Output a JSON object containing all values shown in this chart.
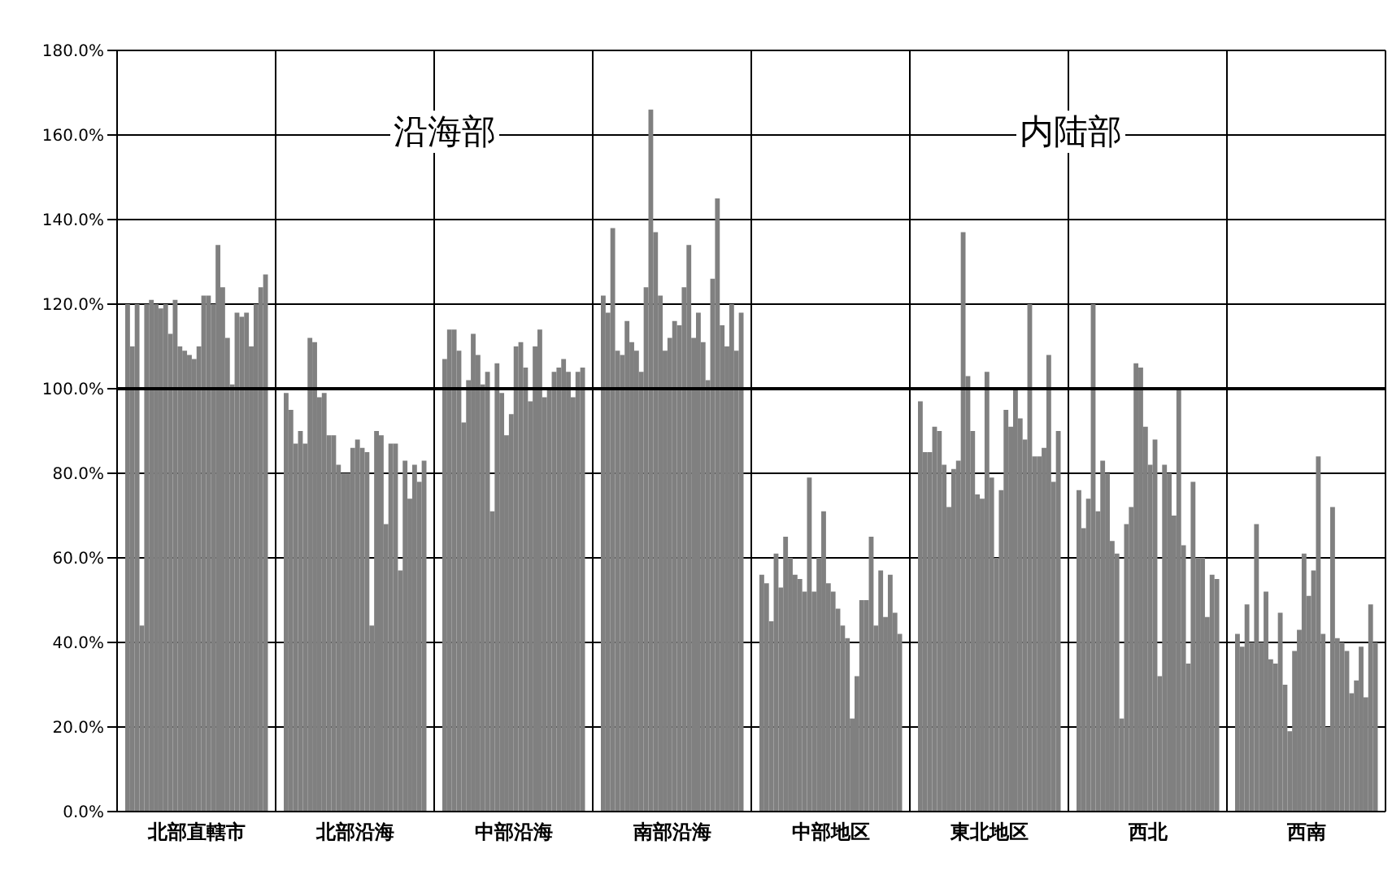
{
  "chart_data": {
    "type": "bar",
    "categories": [
      "北部直轄市",
      "北部沿海",
      "中部沿海",
      "南部沿海",
      "中部地区",
      "東北地区",
      "西北",
      "西南"
    ],
    "color": "#808080",
    "series": [
      {
        "values": [
          120,
          99,
          107,
          122,
          56,
          97,
          76,
          42
        ]
      },
      {
        "values": [
          110,
          95,
          114,
          118,
          54,
          85,
          67,
          39
        ]
      },
      {
        "values": [
          120,
          87,
          114,
          138,
          45,
          85,
          74,
          49
        ]
      },
      {
        "values": [
          44,
          90,
          109,
          109,
          61,
          91,
          120,
          40
        ]
      },
      {
        "values": [
          120,
          87,
          92,
          108,
          53,
          90,
          71,
          68
        ]
      },
      {
        "values": [
          121,
          112,
          102,
          116,
          65,
          82,
          83,
          40
        ]
      },
      {
        "values": [
          120,
          111,
          113,
          111,
          60,
          72,
          80,
          52
        ]
      },
      {
        "values": [
          119,
          98,
          108,
          109,
          56,
          81,
          64,
          36
        ]
      },
      {
        "values": [
          120,
          99,
          101,
          104,
          55,
          83,
          61,
          35
        ]
      },
      {
        "values": [
          113,
          89,
          104,
          124,
          52,
          137,
          22,
          47
        ]
      },
      {
        "values": [
          121,
          89,
          71,
          166,
          79,
          103,
          68,
          30
        ]
      },
      {
        "values": [
          110,
          82,
          106,
          137,
          52,
          90,
          72,
          19
        ]
      },
      {
        "values": [
          109,
          80,
          99,
          122,
          60,
          75,
          106,
          38
        ]
      },
      {
        "values": [
          108,
          80,
          89,
          109,
          71,
          74,
          105,
          43
        ]
      },
      {
        "values": [
          107,
          86,
          94,
          112,
          54,
          104,
          91,
          61
        ]
      },
      {
        "values": [
          110,
          88,
          110,
          116,
          52,
          79,
          82,
          51
        ]
      },
      {
        "values": [
          122,
          86,
          111,
          115,
          48,
          60,
          88,
          57
        ]
      },
      {
        "values": [
          122,
          85,
          105,
          124,
          44,
          76,
          32,
          84
        ]
      },
      {
        "values": [
          120,
          44,
          97,
          134,
          41,
          95,
          82,
          42
        ]
      },
      {
        "values": [
          134,
          90,
          110,
          112,
          22,
          91,
          80,
          20
        ]
      },
      {
        "values": [
          124,
          89,
          114,
          118,
          32,
          100,
          70,
          72
        ]
      },
      {
        "values": [
          112,
          68,
          98,
          111,
          50,
          93,
          100,
          41
        ]
      },
      {
        "values": [
          101,
          87,
          100,
          102,
          50,
          88,
          63,
          40
        ]
      },
      {
        "values": [
          118,
          87,
          104,
          126,
          65,
          120,
          35,
          38
        ]
      },
      {
        "values": [
          117,
          57,
          105,
          145,
          44,
          84,
          78,
          28
        ]
      },
      {
        "values": [
          118,
          83,
          107,
          115,
          57,
          84,
          60,
          31
        ]
      },
      {
        "values": [
          110,
          74,
          104,
          110,
          46,
          86,
          60,
          39
        ]
      },
      {
        "values": [
          120,
          82,
          98,
          120,
          56,
          108,
          46,
          27
        ]
      },
      {
        "values": [
          124,
          78,
          104,
          109,
          47,
          78,
          56,
          49
        ]
      },
      {
        "values": [
          127,
          83,
          105,
          118,
          42,
          90,
          55,
          40
        ]
      }
    ],
    "ylim": [
      0,
      180
    ],
    "yticks": [
      {
        "value": 0,
        "label": "0.0%"
      },
      {
        "value": 20,
        "label": "20.0%"
      },
      {
        "value": 40,
        "label": "40.0%"
      },
      {
        "value": 60,
        "label": "60.0%"
      },
      {
        "value": 80,
        "label": "80.0%"
      },
      {
        "value": 100,
        "label": "100.0%"
      },
      {
        "value": 120,
        "label": "120.0%"
      },
      {
        "value": 140,
        "label": "140.0%"
      },
      {
        "value": 160,
        "label": "160.0%"
      },
      {
        "value": 180,
        "label": "180.0%"
      }
    ],
    "grid": true,
    "ref_lines": [
      {
        "axis": "y",
        "value": 100,
        "color": "#000000"
      }
    ],
    "annotations": [
      "沿海部",
      "内陆部"
    ]
  }
}
